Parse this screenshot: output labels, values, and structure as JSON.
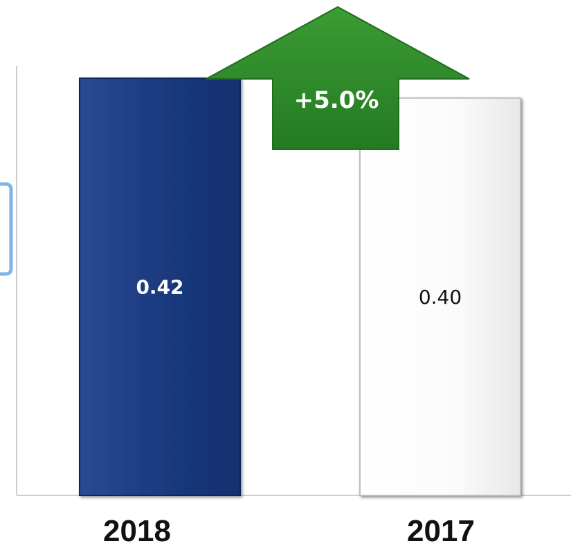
{
  "chart_data": {
    "type": "bar",
    "categories": [
      "2018",
      "2017"
    ],
    "values": [
      0.42,
      0.4
    ],
    "value_labels": [
      "0.42",
      "0.40"
    ],
    "ylim": [
      0,
      0.45
    ],
    "grid": false,
    "legend": "none",
    "bar_colors": [
      "#1c3a80",
      "#fbfbfb"
    ],
    "value_label_colors": [
      "#ffffff",
      "#111111"
    ],
    "annotation": {
      "text": "+5.0%",
      "shape": "up-arrow",
      "color": "#2f8a2a"
    }
  }
}
